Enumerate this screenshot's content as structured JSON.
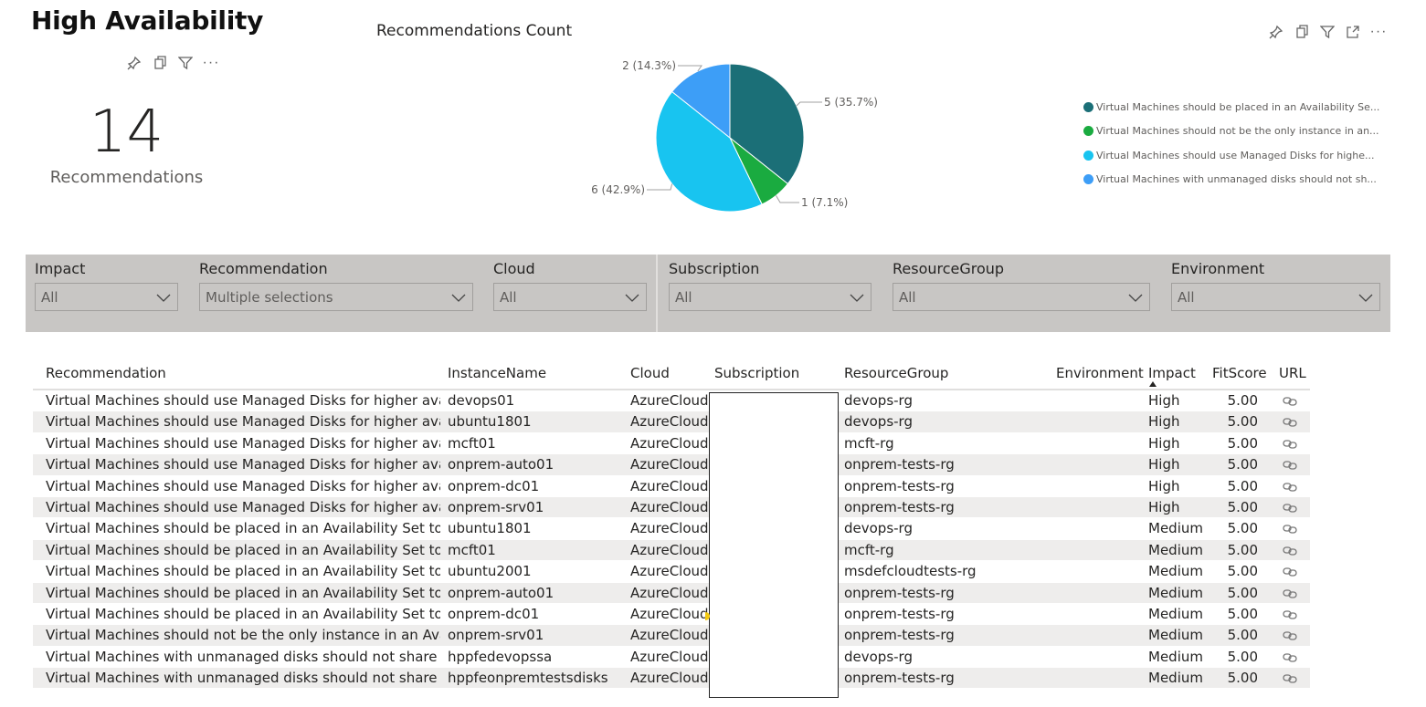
{
  "page": {
    "title": "High Availability"
  },
  "card": {
    "value": "14",
    "label": "Recommendations"
  },
  "colors": {
    "teal": "#1b6f77",
    "green": "#1aab40",
    "cyan": "#18c4f0",
    "blue": "#3d9ef7"
  },
  "chart_data": {
    "type": "pie",
    "title": "Recommendations Count",
    "slices": [
      {
        "name": "Virtual Machines should be placed in an Availability Se...",
        "value": 5,
        "label": "5 (35.7%)",
        "color": "#1b6f77"
      },
      {
        "name": "Virtual Machines should not be the only instance in an...",
        "value": 1,
        "label": "1 (7.1%)",
        "color": "#1aab40"
      },
      {
        "name": "Virtual Machines should use Managed Disks for highe...",
        "value": 6,
        "label": "6 (42.9%)",
        "color": "#18c4f0"
      },
      {
        "name": "Virtual Machines with unmanaged disks should not sh...",
        "value": 2,
        "label": "2 (14.3%)",
        "color": "#3d9ef7"
      }
    ],
    "legend_position": "right"
  },
  "slicers": [
    {
      "title": "Impact",
      "value": "All"
    },
    {
      "title": "Recommendation",
      "value": "Multiple selections"
    },
    {
      "title": "Cloud",
      "value": "All"
    },
    {
      "title": "Subscription",
      "value": "All"
    },
    {
      "title": "ResourceGroup",
      "value": "All"
    },
    {
      "title": "Environment",
      "value": "All"
    }
  ],
  "table": {
    "headers": [
      "Recommendation",
      "InstanceName",
      "Cloud",
      "Subscription",
      "ResourceGroup",
      "Environment",
      "Impact",
      "FitScore",
      "URL"
    ],
    "rows": [
      [
        "Virtual Machines should use Managed Disks for higher availa...",
        "devops01",
        "AzureCloud",
        "",
        "devops-rg",
        "",
        "High",
        "5.00"
      ],
      [
        "Virtual Machines should use Managed Disks for higher availa...",
        "ubuntu1801",
        "AzureCloud",
        "",
        "devops-rg",
        "",
        "High",
        "5.00"
      ],
      [
        "Virtual Machines should use Managed Disks for higher availa...",
        "mcft01",
        "AzureCloud",
        "",
        "mcft-rg",
        "",
        "High",
        "5.00"
      ],
      [
        "Virtual Machines should use Managed Disks for higher availa...",
        "onprem-auto01",
        "AzureCloud",
        "",
        "onprem-tests-rg",
        "",
        "High",
        "5.00"
      ],
      [
        "Virtual Machines should use Managed Disks for higher availa...",
        "onprem-dc01",
        "AzureCloud",
        "",
        "onprem-tests-rg",
        "",
        "High",
        "5.00"
      ],
      [
        "Virtual Machines should use Managed Disks for higher availa...",
        "onprem-srv01",
        "AzureCloud",
        "",
        "onprem-tests-rg",
        "",
        "High",
        "5.00"
      ],
      [
        "Virtual Machines should be placed in an Availability Set toge...",
        "ubuntu1801",
        "AzureCloud",
        "",
        "devops-rg",
        "",
        "Medium",
        "5.00"
      ],
      [
        "Virtual Machines should be placed in an Availability Set toge...",
        "mcft01",
        "AzureCloud",
        "",
        "mcft-rg",
        "",
        "Medium",
        "5.00"
      ],
      [
        "Virtual Machines should be placed in an Availability Set toge...",
        "ubuntu2001",
        "AzureCloud",
        "",
        "msdefcloudtests-rg",
        "",
        "Medium",
        "5.00"
      ],
      [
        "Virtual Machines should be placed in an Availability Set toge...",
        "onprem-auto01",
        "AzureCloud",
        "",
        "onprem-tests-rg",
        "",
        "Medium",
        "5.00"
      ],
      [
        "Virtual Machines should be placed in an Availability Set toge...",
        "onprem-dc01",
        "AzureCloud",
        "",
        "onprem-tests-rg",
        "",
        "Medium",
        "5.00"
      ],
      [
        "Virtual Machines should not be the only instance in an Avail...",
        "onprem-srv01",
        "AzureCloud",
        "",
        "onprem-tests-rg",
        "",
        "Medium",
        "5.00"
      ],
      [
        "Virtual Machines with unmanaged disks should not share th...",
        "hppfedevopssa",
        "AzureCloud",
        "",
        "devops-rg",
        "",
        "Medium",
        "5.00"
      ],
      [
        "Virtual Machines with unmanaged disks should not share th...",
        "hppfeonpremtestsdisks",
        "AzureCloud",
        "",
        "onprem-tests-rg",
        "",
        "Medium",
        "5.00"
      ]
    ]
  }
}
